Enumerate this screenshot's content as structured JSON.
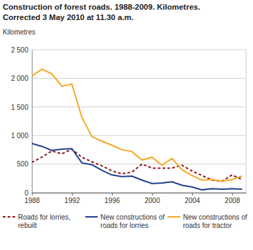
{
  "chart_data": {
    "type": "line",
    "title": "Construction of forest roads. 1988-2009. Kilometres.",
    "subtitle": "Corrected 3 May 2010 at 11.30 a.m.",
    "y_label": "Kilometres",
    "x": [
      1988,
      1989,
      1990,
      1991,
      1992,
      1993,
      1994,
      1995,
      1996,
      1997,
      1998,
      1999,
      2000,
      2001,
      2002,
      2003,
      2004,
      2005,
      2006,
      2007,
      2008,
      2009
    ],
    "series": [
      {
        "name": "Roads for lorries, rebuilt",
        "color": "#8b1a1a",
        "line_style": "dashed",
        "values": [
          530,
          620,
          730,
          680,
          760,
          620,
          540,
          470,
          380,
          330,
          360,
          500,
          430,
          430,
          430,
          480,
          380,
          300,
          220,
          200,
          310,
          230
        ]
      },
      {
        "name": "New constructions of roads for lorries",
        "color": "#1f3d8c",
        "line_style": "solid",
        "values": [
          860,
          810,
          740,
          760,
          770,
          520,
          490,
          390,
          310,
          280,
          290,
          220,
          160,
          170,
          190,
          130,
          100,
          50,
          70,
          60,
          70,
          60
        ]
      },
      {
        "name": "New constructions of roads for tractor",
        "color": "#f5a623",
        "line_style": "solid",
        "values": [
          2040,
          2160,
          2080,
          1860,
          1900,
          1320,
          980,
          900,
          830,
          750,
          720,
          570,
          620,
          480,
          600,
          400,
          300,
          220,
          230,
          200,
          230,
          290
        ]
      }
    ],
    "xlim": [
      1988,
      2009.4
    ],
    "xticks": [
      1988,
      1992,
      1996,
      2000,
      2004,
      2008
    ],
    "ylim": [
      0,
      2500
    ],
    "yticks": [
      {
        "value": 0,
        "label": "0"
      },
      {
        "value": 500,
        "label": "500"
      },
      {
        "value": 1000,
        "label": "1 000"
      },
      {
        "value": 1500,
        "label": "1 500"
      },
      {
        "value": 2000,
        "label": "2 000"
      },
      {
        "value": 2500,
        "label": "2 500"
      }
    ],
    "grid": true,
    "legend": "bottom"
  }
}
